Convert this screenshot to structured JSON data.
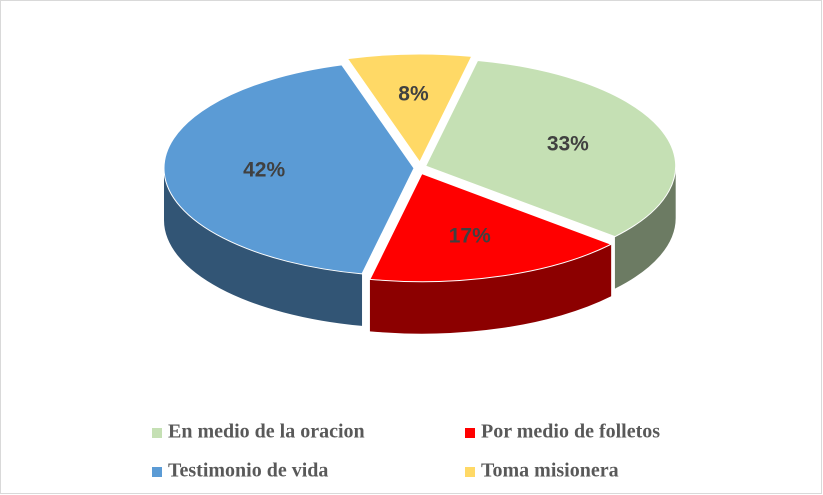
{
  "chart_data": {
    "type": "pie",
    "categories": [
      "En medio de la oracion",
      "Por medio de folletos",
      "Testimonio de vida",
      "Toma misionera"
    ],
    "values": [
      33,
      17,
      42,
      8
    ],
    "value_labels": [
      "33%",
      "17%",
      "42%",
      "8%"
    ],
    "colors": [
      "#c5e0b4",
      "#ff0000",
      "#5b9bd5",
      "#ffd966"
    ],
    "legend": "bottom"
  }
}
